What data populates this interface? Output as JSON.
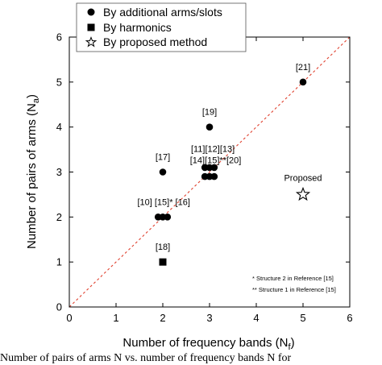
{
  "chart_data": {
    "type": "scatter",
    "xlabel": "Number of frequency bands (N",
    "xlabel_sub": "f",
    "xlabel_end": ")",
    "ylabel": "Number of pairs of arms (N",
    "ylabel_sub": "a",
    "ylabel_end": ")",
    "xlim": [
      0,
      6
    ],
    "ylim": [
      0,
      6
    ],
    "x_ticks": [
      "0",
      "1",
      "2",
      "3",
      "4",
      "5",
      "6"
    ],
    "y_ticks": [
      "0",
      "1",
      "2",
      "3",
      "4",
      "5",
      "6"
    ],
    "grid": false,
    "legend_position": "top-left",
    "reference_line": {
      "style": "dashed",
      "color": "#e0412f",
      "from": [
        0,
        0
      ],
      "to": [
        6,
        6
      ]
    },
    "series": [
      {
        "name": "By additional arms/slots",
        "marker": "circle",
        "points": [
          {
            "x": 1.9,
            "y": 2
          },
          {
            "x": 2.0,
            "y": 2
          },
          {
            "x": 2.1,
            "y": 2
          },
          {
            "x": 2.0,
            "y": 3
          },
          {
            "x": 3.0,
            "y": 4
          },
          {
            "x": 2.9,
            "y": 3.1
          },
          {
            "x": 3.0,
            "y": 3.1
          },
          {
            "x": 3.1,
            "y": 3.1
          },
          {
            "x": 2.9,
            "y": 2.9
          },
          {
            "x": 3.0,
            "y": 2.9
          },
          {
            "x": 3.1,
            "y": 2.9
          },
          {
            "x": 5.0,
            "y": 5
          }
        ]
      },
      {
        "name": "By harmonics",
        "marker": "square",
        "points": [
          {
            "x": 2.0,
            "y": 1
          }
        ]
      },
      {
        "name": "By proposed method",
        "marker": "star",
        "points": [
          {
            "x": 5.0,
            "y": 2.5
          }
        ]
      }
    ],
    "annotations": [
      {
        "text": "[21]",
        "x": 5.0,
        "y": 5.27
      },
      {
        "text": "[19]",
        "x": 3.0,
        "y": 4.27
      },
      {
        "text": "[17]",
        "x": 2.0,
        "y": 3.27
      },
      {
        "text": "[11][12][13]",
        "x": 3.07,
        "y": 3.45
      },
      {
        "text": "[14][15]**[20]",
        "x": 3.13,
        "y": 3.2
      },
      {
        "text": "[10] [15]* [16]",
        "x": 2.02,
        "y": 2.27
      },
      {
        "text": "[18]",
        "x": 2.0,
        "y": 1.27
      },
      {
        "text": "Proposed",
        "x": 5.0,
        "y": 2.8
      }
    ],
    "notes": [
      "*  Structure 2 in Reference [15]",
      "** Structure 1 in Reference [15]"
    ]
  },
  "caption": "Number of pairs of arms N vs. number of frequency bands N for"
}
